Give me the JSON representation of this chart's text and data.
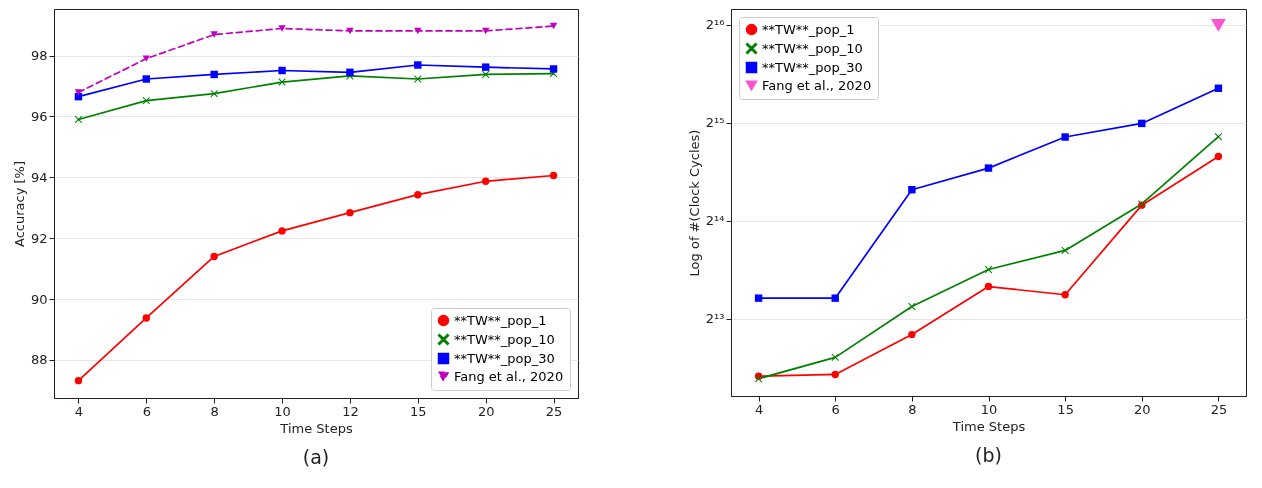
{
  "chart_data": [
    {
      "type": "line",
      "xlabel": "Time Steps",
      "ylabel": "Accuracy [%]",
      "annotations": [
        "(a)"
      ],
      "categories": [
        "4",
        "6",
        "8",
        "10",
        "12",
        "15",
        "20",
        "25"
      ],
      "ylim": [
        86.75,
        99.53
      ],
      "yticks": [
        88,
        90,
        92,
        94,
        96,
        98
      ],
      "grid": "y",
      "legend": "bottom right",
      "series": [
        {
          "name": "**TW**_pop_1",
          "color": "#ff0000",
          "marker": "circle",
          "line_style": "solid",
          "values": [
            87.32,
            89.38,
            91.4,
            92.24,
            92.84,
            93.43,
            93.87,
            94.06
          ]
        },
        {
          "name": "**TW**_pop_10",
          "color": "#008000",
          "marker": "cross",
          "line_style": "solid",
          "values": [
            95.9,
            96.52,
            96.75,
            97.13,
            97.33,
            97.23,
            97.38,
            97.41
          ]
        },
        {
          "name": "**TW**_pop_30",
          "color": "#0000ff",
          "marker": "square",
          "line_style": "solid",
          "values": [
            96.65,
            97.23,
            97.38,
            97.51,
            97.45,
            97.69,
            97.62,
            97.56
          ]
        },
        {
          "name": "Fang et al., 2020",
          "color": "#bf00bf",
          "marker": "triangle",
          "line_style": "dashed",
          "values": [
            96.79,
            97.9,
            98.69,
            98.89,
            98.81,
            98.81,
            98.81,
            98.97
          ]
        }
      ]
    },
    {
      "type": "line",
      "xlabel": "Time Steps",
      "ylabel": "Log of #(Clock Cycles)",
      "annotations": [
        "(b)"
      ],
      "categories": [
        "4",
        "6",
        "8",
        "10",
        "15",
        "20",
        "25"
      ],
      "log": true,
      "ylim": [
        4740,
        73200
      ],
      "yticks": [
        {
          "value": 8192,
          "label": "2¹³"
        },
        {
          "value": 16384,
          "label": "2¹⁴"
        },
        {
          "value": 32768,
          "label": "2¹⁵"
        },
        {
          "value": 65536,
          "label": "2¹⁶"
        }
      ],
      "grid": "y",
      "legend": "top left",
      "series": [
        {
          "name": "**TW**_pop_1",
          "color": "#ff0000",
          "marker": "circle",
          "line_style": "solid",
          "values": [
            5449,
            5521,
            7318,
            10280,
            9700,
            18280,
            25800
          ]
        },
        {
          "name": "**TW**_pop_10",
          "color": "#008000",
          "marker": "cross",
          "line_style": "solid",
          "values": [
            5357,
            6230,
            8930,
            11600,
            13270,
            18440,
            29660
          ]
        },
        {
          "name": "**TW**_pop_30",
          "color": "#0000ff",
          "marker": "square",
          "line_style": "solid",
          "values": [
            9470,
            9470,
            20390,
            23760,
            29600,
            32590,
            41790
          ]
        },
        {
          "name": "Fang et al., 2020",
          "type": "scatter",
          "color": "#f656d4",
          "marker": "triangle",
          "values": [
            null,
            null,
            null,
            null,
            null,
            null,
            65220
          ]
        }
      ]
    }
  ]
}
